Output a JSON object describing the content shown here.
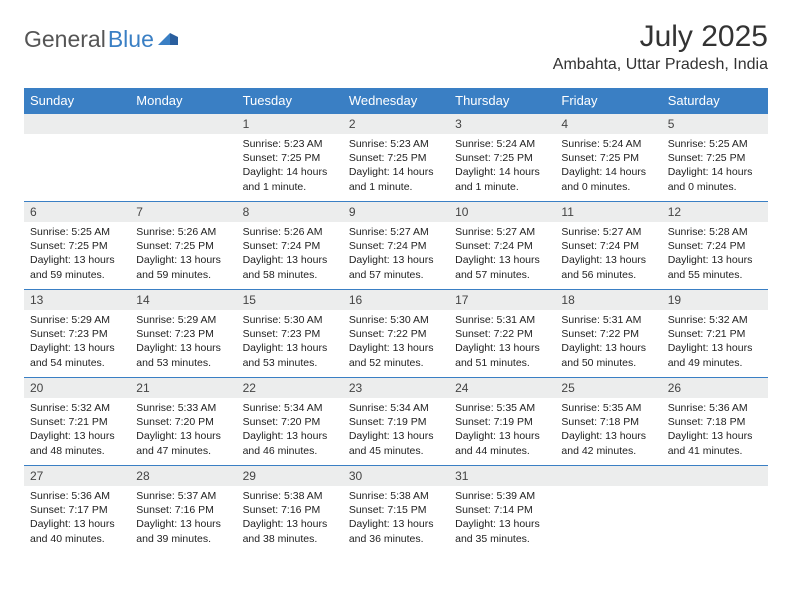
{
  "brand": {
    "part1": "General",
    "part2": "Blue"
  },
  "title": "July 2025",
  "location": "Ambahta, Uttar Pradesh, India",
  "colors": {
    "accent": "#3a7fc4",
    "daynum_bg": "#eceded",
    "text": "#222222",
    "header_text": "#ffffff",
    "page_bg": "#ffffff"
  },
  "dayNames": [
    "Sunday",
    "Monday",
    "Tuesday",
    "Wednesday",
    "Thursday",
    "Friday",
    "Saturday"
  ],
  "startOffset": 2,
  "daysInMonth": 31,
  "days": {
    "1": {
      "sunrise": "5:23 AM",
      "sunset": "7:25 PM",
      "daylight": "14 hours and 1 minute."
    },
    "2": {
      "sunrise": "5:23 AM",
      "sunset": "7:25 PM",
      "daylight": "14 hours and 1 minute."
    },
    "3": {
      "sunrise": "5:24 AM",
      "sunset": "7:25 PM",
      "daylight": "14 hours and 1 minute."
    },
    "4": {
      "sunrise": "5:24 AM",
      "sunset": "7:25 PM",
      "daylight": "14 hours and 0 minutes."
    },
    "5": {
      "sunrise": "5:25 AM",
      "sunset": "7:25 PM",
      "daylight": "14 hours and 0 minutes."
    },
    "6": {
      "sunrise": "5:25 AM",
      "sunset": "7:25 PM",
      "daylight": "13 hours and 59 minutes."
    },
    "7": {
      "sunrise": "5:26 AM",
      "sunset": "7:25 PM",
      "daylight": "13 hours and 59 minutes."
    },
    "8": {
      "sunrise": "5:26 AM",
      "sunset": "7:24 PM",
      "daylight": "13 hours and 58 minutes."
    },
    "9": {
      "sunrise": "5:27 AM",
      "sunset": "7:24 PM",
      "daylight": "13 hours and 57 minutes."
    },
    "10": {
      "sunrise": "5:27 AM",
      "sunset": "7:24 PM",
      "daylight": "13 hours and 57 minutes."
    },
    "11": {
      "sunrise": "5:27 AM",
      "sunset": "7:24 PM",
      "daylight": "13 hours and 56 minutes."
    },
    "12": {
      "sunrise": "5:28 AM",
      "sunset": "7:24 PM",
      "daylight": "13 hours and 55 minutes."
    },
    "13": {
      "sunrise": "5:29 AM",
      "sunset": "7:23 PM",
      "daylight": "13 hours and 54 minutes."
    },
    "14": {
      "sunrise": "5:29 AM",
      "sunset": "7:23 PM",
      "daylight": "13 hours and 53 minutes."
    },
    "15": {
      "sunrise": "5:30 AM",
      "sunset": "7:23 PM",
      "daylight": "13 hours and 53 minutes."
    },
    "16": {
      "sunrise": "5:30 AM",
      "sunset": "7:22 PM",
      "daylight": "13 hours and 52 minutes."
    },
    "17": {
      "sunrise": "5:31 AM",
      "sunset": "7:22 PM",
      "daylight": "13 hours and 51 minutes."
    },
    "18": {
      "sunrise": "5:31 AM",
      "sunset": "7:22 PM",
      "daylight": "13 hours and 50 minutes."
    },
    "19": {
      "sunrise": "5:32 AM",
      "sunset": "7:21 PM",
      "daylight": "13 hours and 49 minutes."
    },
    "20": {
      "sunrise": "5:32 AM",
      "sunset": "7:21 PM",
      "daylight": "13 hours and 48 minutes."
    },
    "21": {
      "sunrise": "5:33 AM",
      "sunset": "7:20 PM",
      "daylight": "13 hours and 47 minutes."
    },
    "22": {
      "sunrise": "5:34 AM",
      "sunset": "7:20 PM",
      "daylight": "13 hours and 46 minutes."
    },
    "23": {
      "sunrise": "5:34 AM",
      "sunset": "7:19 PM",
      "daylight": "13 hours and 45 minutes."
    },
    "24": {
      "sunrise": "5:35 AM",
      "sunset": "7:19 PM",
      "daylight": "13 hours and 44 minutes."
    },
    "25": {
      "sunrise": "5:35 AM",
      "sunset": "7:18 PM",
      "daylight": "13 hours and 42 minutes."
    },
    "26": {
      "sunrise": "5:36 AM",
      "sunset": "7:18 PM",
      "daylight": "13 hours and 41 minutes."
    },
    "27": {
      "sunrise": "5:36 AM",
      "sunset": "7:17 PM",
      "daylight": "13 hours and 40 minutes."
    },
    "28": {
      "sunrise": "5:37 AM",
      "sunset": "7:16 PM",
      "daylight": "13 hours and 39 minutes."
    },
    "29": {
      "sunrise": "5:38 AM",
      "sunset": "7:16 PM",
      "daylight": "13 hours and 38 minutes."
    },
    "30": {
      "sunrise": "5:38 AM",
      "sunset": "7:15 PM",
      "daylight": "13 hours and 36 minutes."
    },
    "31": {
      "sunrise": "5:39 AM",
      "sunset": "7:14 PM",
      "daylight": "13 hours and 35 minutes."
    }
  },
  "labels": {
    "sunrise": "Sunrise:",
    "sunset": "Sunset:",
    "daylight": "Daylight:"
  }
}
